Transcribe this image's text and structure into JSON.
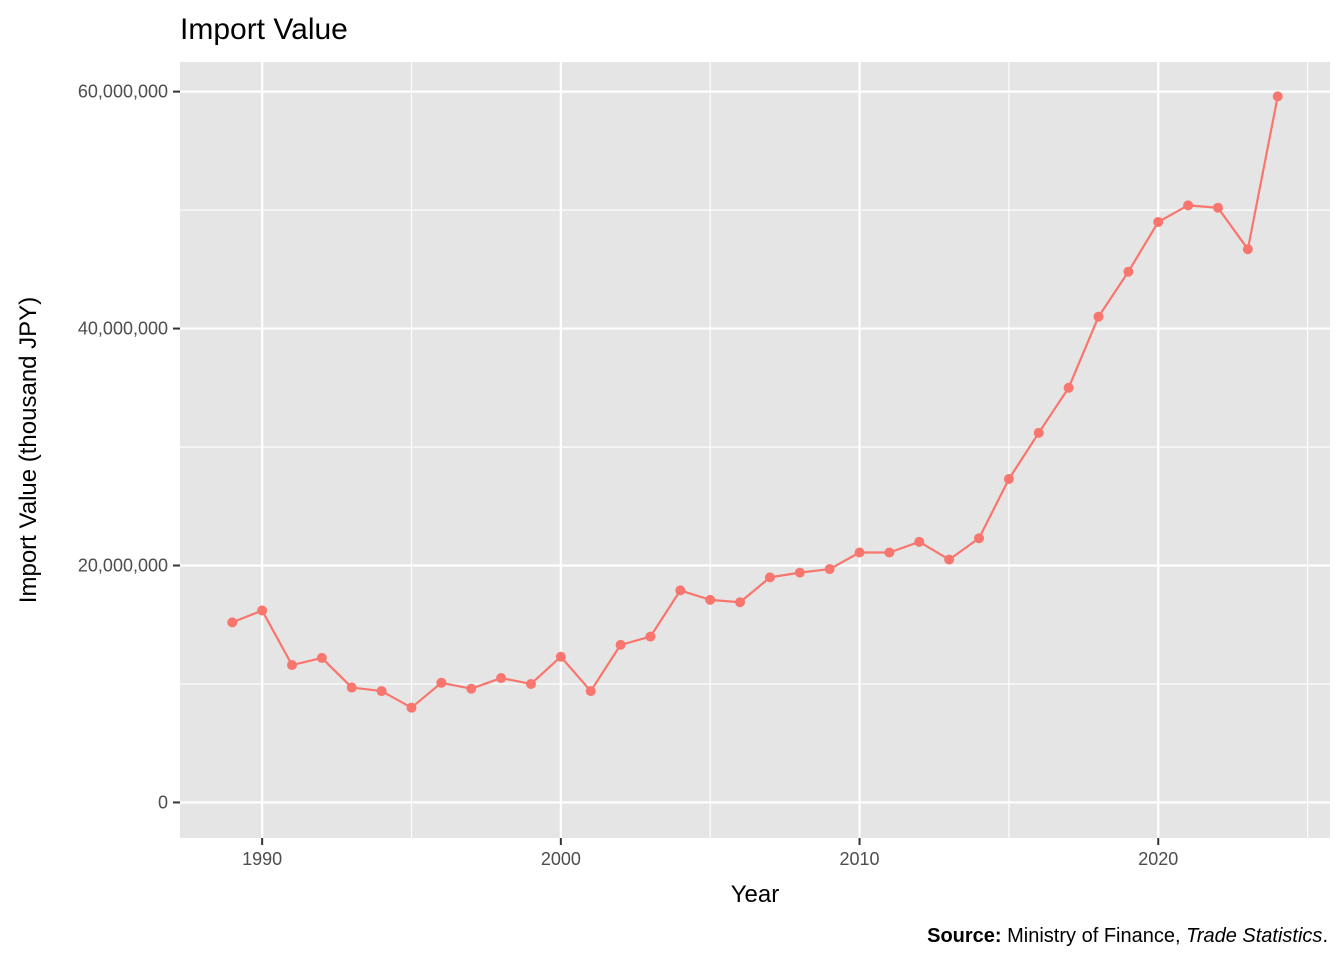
{
  "chart_data": {
    "type": "line",
    "title": "Import Value",
    "xlabel": "Year",
    "ylabel": "Import Value (thousand JPY)",
    "xlim": [
      1987.25,
      2025.75
    ],
    "ylim": [
      -3000000,
      62500000
    ],
    "x_ticks": [
      1990,
      2000,
      2010,
      2020
    ],
    "x_minor_ticks": [
      1995,
      2005,
      2015,
      2025
    ],
    "y_ticks": [
      0,
      20000000,
      40000000,
      60000000
    ],
    "y_minor_ticks": [
      10000000,
      30000000,
      50000000
    ],
    "x_tick_labels": [
      "1990",
      "2000",
      "2010",
      "2020"
    ],
    "y_tick_labels": [
      "0",
      "20,000,000",
      "40,000,000",
      "60,000,000"
    ],
    "grid": true,
    "legend": "none",
    "series": [
      {
        "color": "#f8766d",
        "x": [
          1989,
          1990,
          1991,
          1992,
          1993,
          1994,
          1995,
          1996,
          1997,
          1998,
          1999,
          2000,
          2001,
          2002,
          2003,
          2004,
          2005,
          2006,
          2007,
          2008,
          2009,
          2010,
          2011,
          2012,
          2013,
          2014,
          2015,
          2016,
          2017,
          2018,
          2019,
          2020,
          2021,
          2022,
          2023,
          2024
        ],
        "values": [
          15200000,
          16200000,
          11600000,
          12200000,
          9700000,
          9400000,
          8000000,
          10100000,
          9600000,
          10500000,
          10000000,
          12300000,
          9400000,
          13300000,
          14000000,
          17900000,
          17100000,
          16900000,
          19000000,
          19400000,
          19700000,
          21100000,
          21100000,
          22000000,
          20500000,
          22300000,
          27300000,
          31200000,
          35000000,
          41000000,
          44800000,
          49000000,
          50400000,
          50200000,
          46700000,
          59600000
        ]
      }
    ],
    "caption": {
      "bold": "Source:",
      "text": " Ministry of Finance, ",
      "italic": "Trade Statistics",
      "end": "."
    }
  },
  "colors": {
    "panel_background": "#e5e5e5",
    "grid_major": "#ffffff",
    "tick_color": "#333333",
    "series": "#f8766d"
  }
}
